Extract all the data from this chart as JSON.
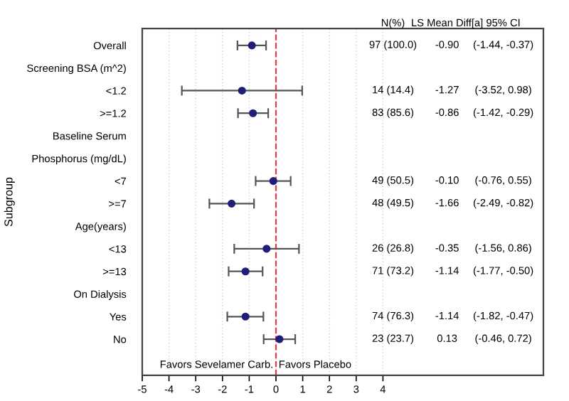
{
  "chart_data": {
    "type": "scatter",
    "orientation": "horizontal",
    "ylabel": "Subgroup",
    "categories": [
      "Overall",
      "Screening BSA (m^2)",
      "<1.2",
      ">=1.2",
      "Baseline Serum",
      "Phosphorus (mg/dL)",
      "<7",
      ">=7",
      "Age(years)",
      "<13",
      ">=13",
      "On Dialysis",
      "Yes",
      "No"
    ],
    "values": [
      -0.9,
      null,
      -1.27,
      -0.86,
      null,
      null,
      -0.1,
      -1.66,
      null,
      -0.35,
      -1.14,
      null,
      -1.14,
      0.13
    ],
    "errors": [
      [
        -1.44,
        -0.37
      ],
      null,
      [
        -3.52,
        0.98
      ],
      [
        -1.42,
        -0.29
      ],
      null,
      null,
      [
        -0.76,
        0.55
      ],
      [
        -2.49,
        -0.82
      ],
      null,
      [
        -1.56,
        0.86
      ],
      [
        -1.77,
        -0.5
      ],
      null,
      [
        -1.82,
        -0.47
      ],
      [
        -0.46,
        0.72
      ]
    ],
    "color": "#1f1f7a",
    "marker": "circle",
    "xlim": [
      -5,
      10
    ],
    "xticks": [
      -5,
      -4,
      -3,
      -2,
      -1,
      0,
      1,
      2,
      3,
      4
    ],
    "grid": "x",
    "ref_lines": [
      {
        "axis": "x",
        "value": 0,
        "color": "#e04040",
        "line_style": "dashed"
      }
    ],
    "annotations": [
      "N(%)",
      "LS Mean Diff[a]",
      "95% CI",
      "Favors Sevelamer Carb.",
      "Favors Placebo",
      "97 (100.0)",
      "-0.90",
      "(-1.44, -0.37)",
      "14 (14.4)",
      "-1.27",
      "(-3.52, 0.98)",
      "83 (85.6)",
      "-0.86",
      "(-1.42, -0.29)",
      "49 (50.5)",
      "-0.10",
      "(-0.76, 0.55)",
      "48 (49.5)",
      "-1.66",
      "(-2.49, -0.82)",
      "26 (26.8)",
      "-0.35",
      "(-1.56, 0.86)",
      "71 (73.2)",
      "-1.14",
      "(-1.77, -0.50)",
      "74 (76.3)",
      "-1.14",
      "(-1.82, -0.47)",
      "23 (23.7)",
      "0.13",
      "(-0.46, 0.72)"
    ]
  }
}
